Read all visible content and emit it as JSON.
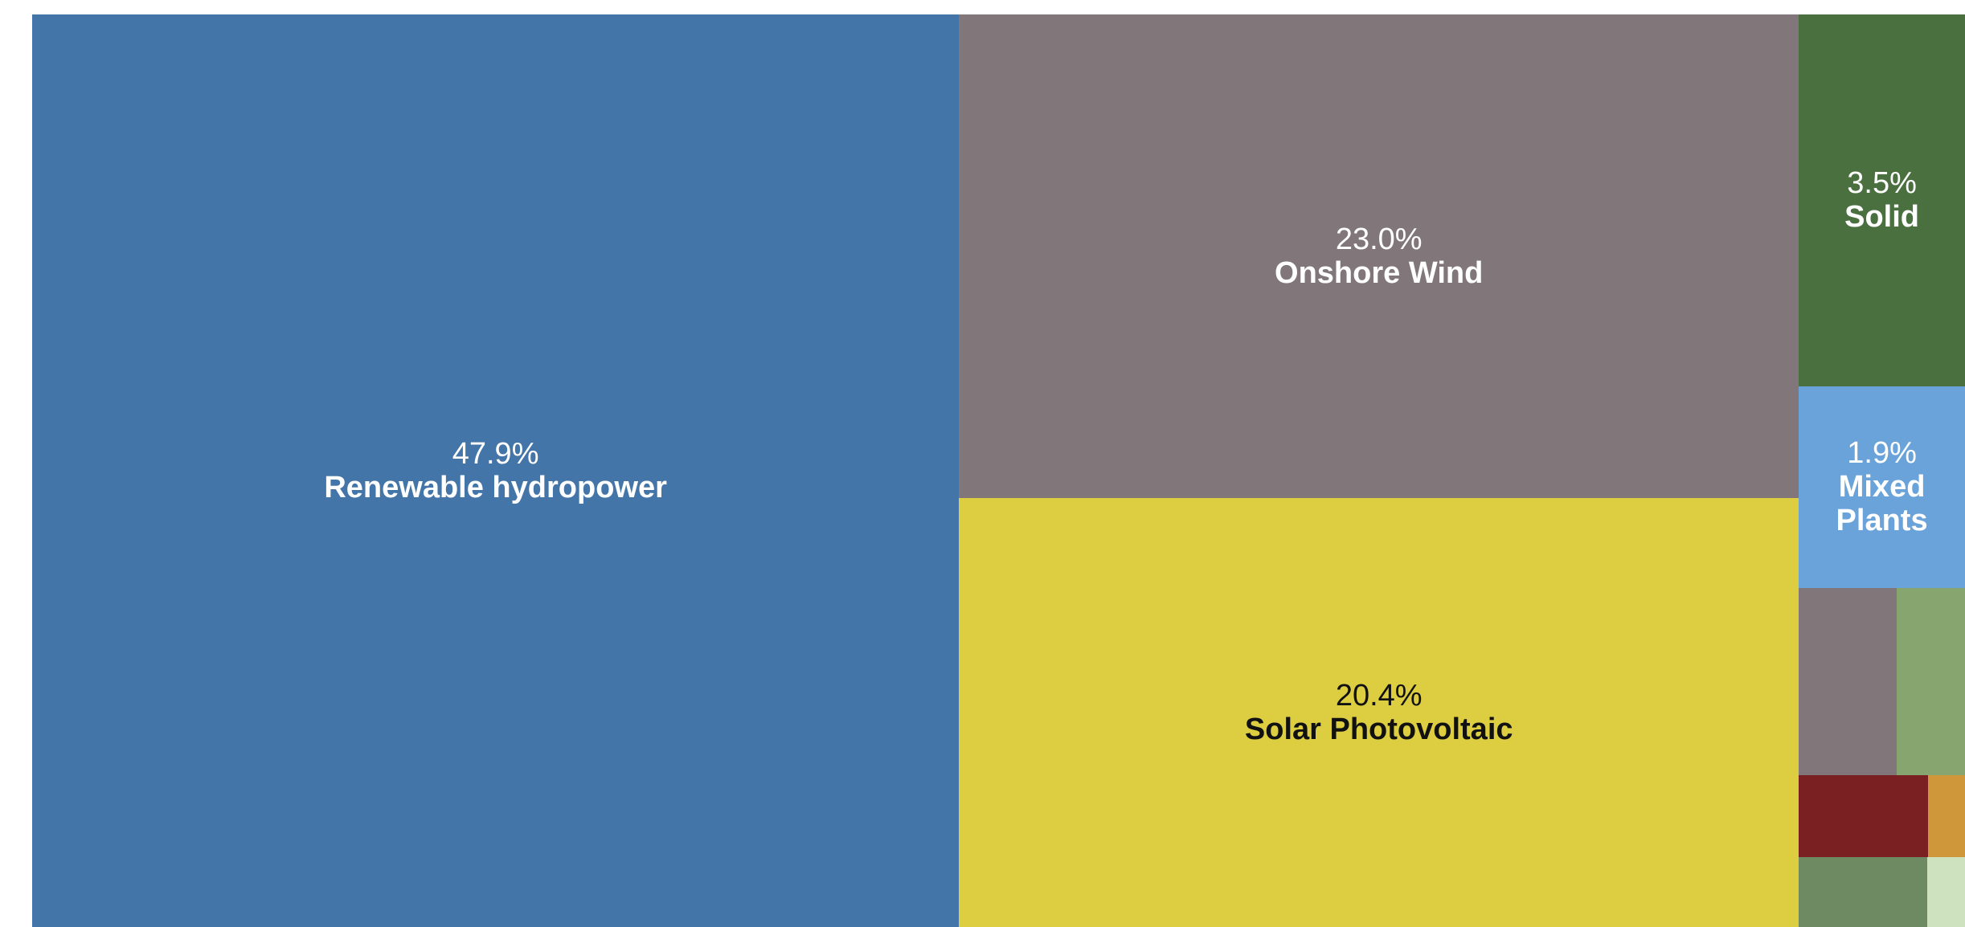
{
  "chart_data": {
    "type": "treemap",
    "categories": [
      "Renewable hydropower",
      "Onshore Wind",
      "Solar Photovoltaic",
      "Solid",
      "Mixed Plants",
      null,
      null,
      null,
      null,
      null,
      null
    ],
    "values": [
      47.9,
      23.0,
      20.4,
      3.5,
      1.9,
      1.04,
      0.72,
      0.6,
      0.17,
      0.51,
      0.15
    ],
    "value_labels": [
      "47.9%",
      "23.0%",
      "20.4%",
      "3.5%",
      "1.9%",
      null,
      null,
      null,
      null,
      null,
      null
    ],
    "colors": [
      "#4475a8",
      "#81777a",
      "#dccd41",
      "#4a7040",
      "#6aa3d9",
      "#81777a",
      "#87a56f",
      "#7a1f22",
      "#cf963a",
      "#6e8a63",
      "#cfe2c0"
    ]
  }
}
